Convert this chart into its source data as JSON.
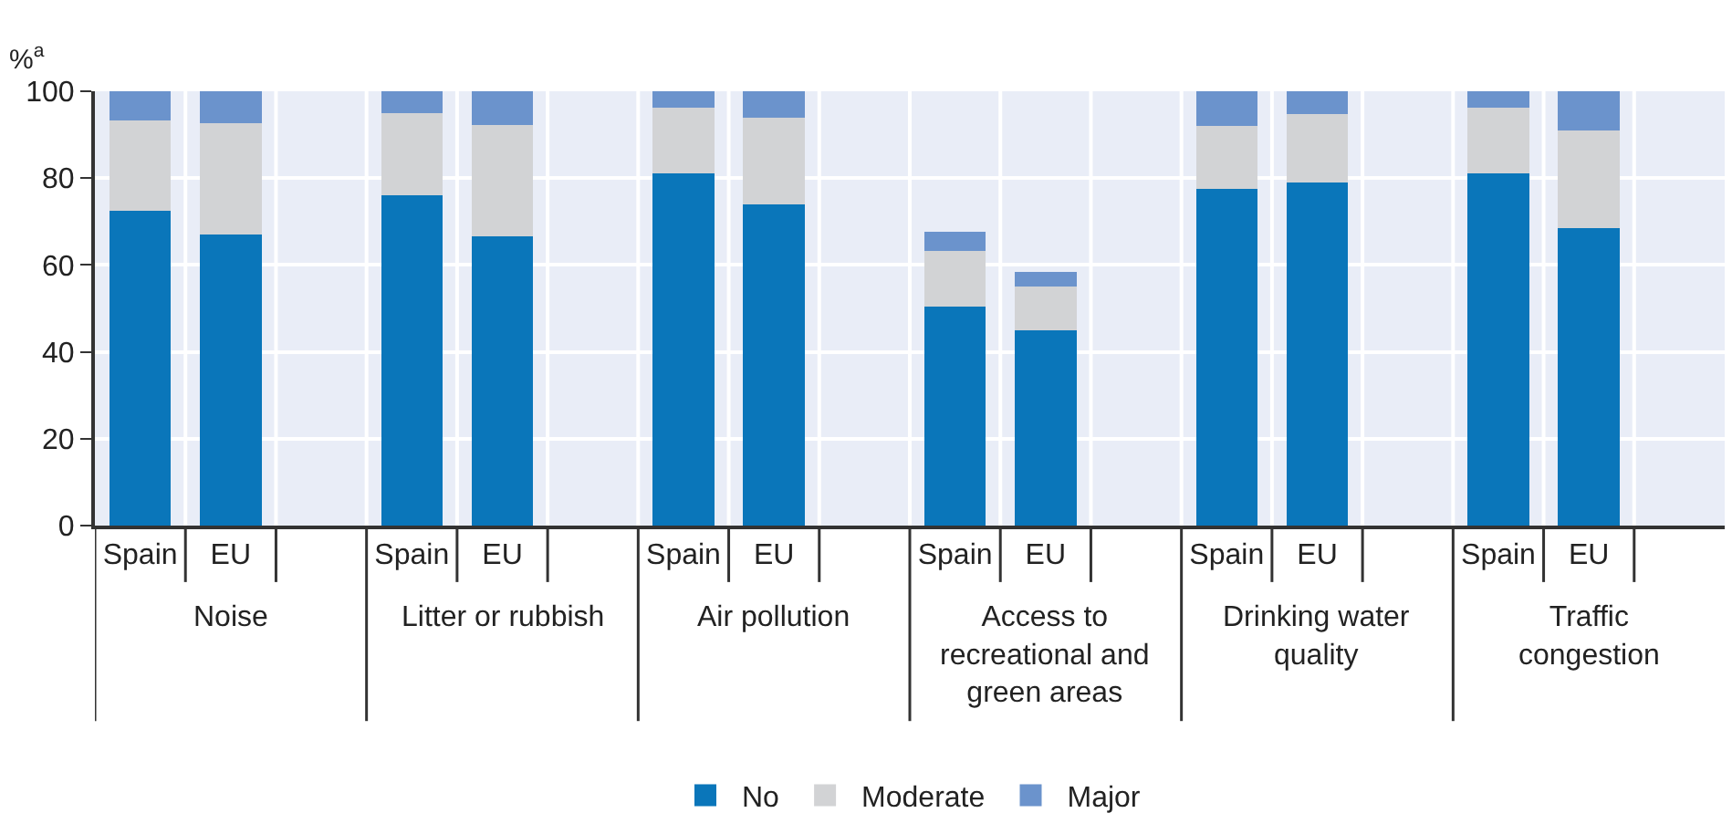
{
  "chart_data": {
    "type": "bar",
    "stacked": true,
    "ylabel": "%$^{a}$",
    "categories": [
      "Spain",
      "EU",
      null,
      "Spain",
      "EU",
      null,
      "Spain",
      "EU",
      null,
      "Spain",
      "EU",
      null,
      "Spain",
      "EU",
      null,
      "Spain",
      "EU",
      null
    ],
    "annotations": [
      "Noise",
      "Litter or rubbish",
      "Air pollution",
      "Access to recreational and green areas",
      "Drinking water quality",
      "Traffic congestion"
    ],
    "series": [
      {
        "name": "No",
        "color": "#0a76ba",
        "values": [
          72.4,
          67,
          null,
          76,
          66.7,
          null,
          81,
          74,
          null,
          50.5,
          45,
          null,
          77.6,
          79,
          null,
          81,
          68.5,
          null
        ]
      },
      {
        "name": "Moderate",
        "color": "#d2d3d5",
        "values": [
          20.9,
          25.7,
          null,
          19,
          25.6,
          null,
          15.3,
          20,
          null,
          12.7,
          10,
          null,
          14.4,
          15.7,
          null,
          15.2,
          22.5,
          null
        ]
      },
      {
        "name": "Major",
        "color": "#6b93cc",
        "values": [
          6.7,
          7.3,
          null,
          5,
          7.7,
          null,
          3.7,
          6,
          null,
          4.4,
          3.4,
          null,
          8,
          5.3,
          null,
          3.8,
          9,
          null
        ]
      }
    ],
    "ylim": [
      0,
      100
    ],
    "yticks": [
      0,
      20,
      40,
      60,
      80,
      100
    ],
    "grid": "y",
    "legend": "bottom"
  }
}
